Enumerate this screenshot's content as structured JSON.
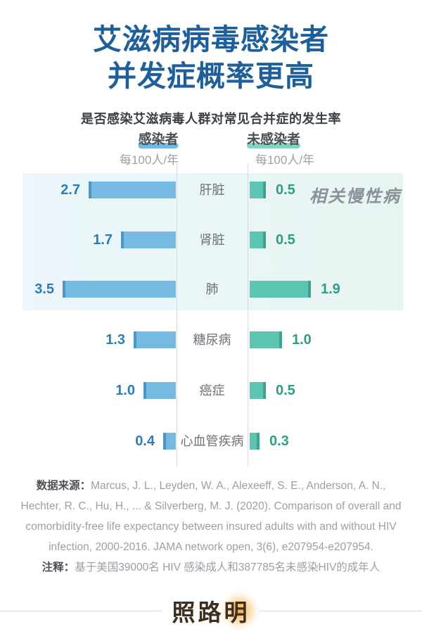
{
  "title": {
    "line1": "艾滋病病毒感染者",
    "line2": "并发症概率更高"
  },
  "subtitle": "是否感染艾滋病毒人群对常见合并症的发生率",
  "legend": {
    "infected": "感染者",
    "uninfected": "未感染者"
  },
  "unit_label_left": "每100人/年",
  "unit_label_right": "每100人/年",
  "chart_data": {
    "type": "bar",
    "variant": "diverging-horizontal",
    "title": "是否感染艾滋病毒人群对常见合并症的发生率",
    "unit": "每100人/年",
    "categories": [
      "肝脏",
      "肾脏",
      "肺",
      "糖尿病",
      "癌症",
      "心血管疾病"
    ],
    "series": [
      {
        "name": "感染者",
        "side": "left",
        "color": "#76bae2",
        "values": [
          2.7,
          1.7,
          3.5,
          1.3,
          1.0,
          0.4
        ]
      },
      {
        "name": "未感染者",
        "side": "right",
        "color": "#5dc6b2",
        "values": [
          0.5,
          0.5,
          1.9,
          1.0,
          0.5,
          0.3
        ]
      }
    ],
    "highlight": {
      "label": "相关慢性病",
      "category_indices": [
        0,
        1,
        2
      ]
    },
    "x_max": 3.5,
    "value_label_format": "one-decimal",
    "legend_position": "top"
  },
  "footer": {
    "source_label": "数据来源：",
    "source_text": "Marcus, J. L., Leyden, W. A., Alexeeff, S. E., Anderson, A. N., Hechter, R. C., Hu, H., ... & Silverberg, M. J. (2020). Comparison of overall and comorbidity-free life expectancy between insured adults with and without HIV infection, 2000-2016. JAMA network open, 3(6), e207954-e207954.",
    "note_label": "注释：",
    "note_text": "基于美国39000名 HIV 感染成人和387785名未感染HIV的成年人"
  },
  "logo": {
    "text": "照路明"
  },
  "colors": {
    "title_blue": "#1e5f9a",
    "infected_bar": "#76bae2",
    "infected_bar_cap": "#4e94c4",
    "infected_value": "#2d7cb5",
    "uninfected_bar": "#5dc6b2",
    "uninfected_bar_cap": "#3da290",
    "uninfected_value": "#2f9c88",
    "highlight_band_left": "#ecf6fb",
    "highlight_band_right": "#e7f5f1",
    "legend_underline_infected": "#6fbbe4",
    "legend_underline_uninfected": "#82d5c3",
    "logo_glow": "#f2a43c"
  }
}
